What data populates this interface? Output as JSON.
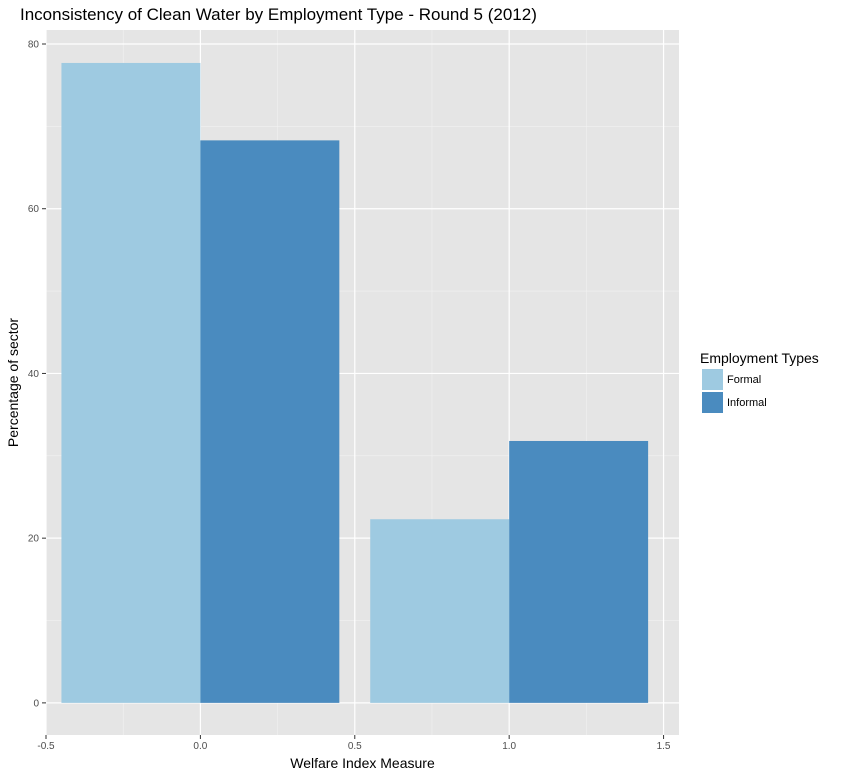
{
  "chart_data": {
    "type": "bar",
    "title": "Inconsistency of Clean Water by Employment Type - Round 5 (2012)",
    "xlabel": "Welfare Index Measure",
    "ylabel": "Percentage of sector",
    "x": [
      0,
      1
    ],
    "xlim": [
      -0.5,
      1.55
    ],
    "ylim": [
      -3.9,
      81.7
    ],
    "xticks": [
      -0.5,
      0.0,
      0.5,
      1.0,
      1.5
    ],
    "xtick_labels": [
      "-0.5",
      "0.0",
      "0.5",
      "1.0",
      "1.5"
    ],
    "yticks": [
      0,
      20,
      40,
      60,
      80
    ],
    "ytick_labels": [
      "0",
      "20",
      "40",
      "60",
      "80"
    ],
    "grid": true,
    "legend": {
      "title": "Employment Types",
      "position": "right"
    },
    "series": [
      {
        "name": "Formal",
        "color": "#9ecae1",
        "values": [
          77.7,
          22.3
        ]
      },
      {
        "name": "Informal",
        "color": "#4a8bbf",
        "values": [
          68.3,
          31.8
        ]
      }
    ]
  }
}
